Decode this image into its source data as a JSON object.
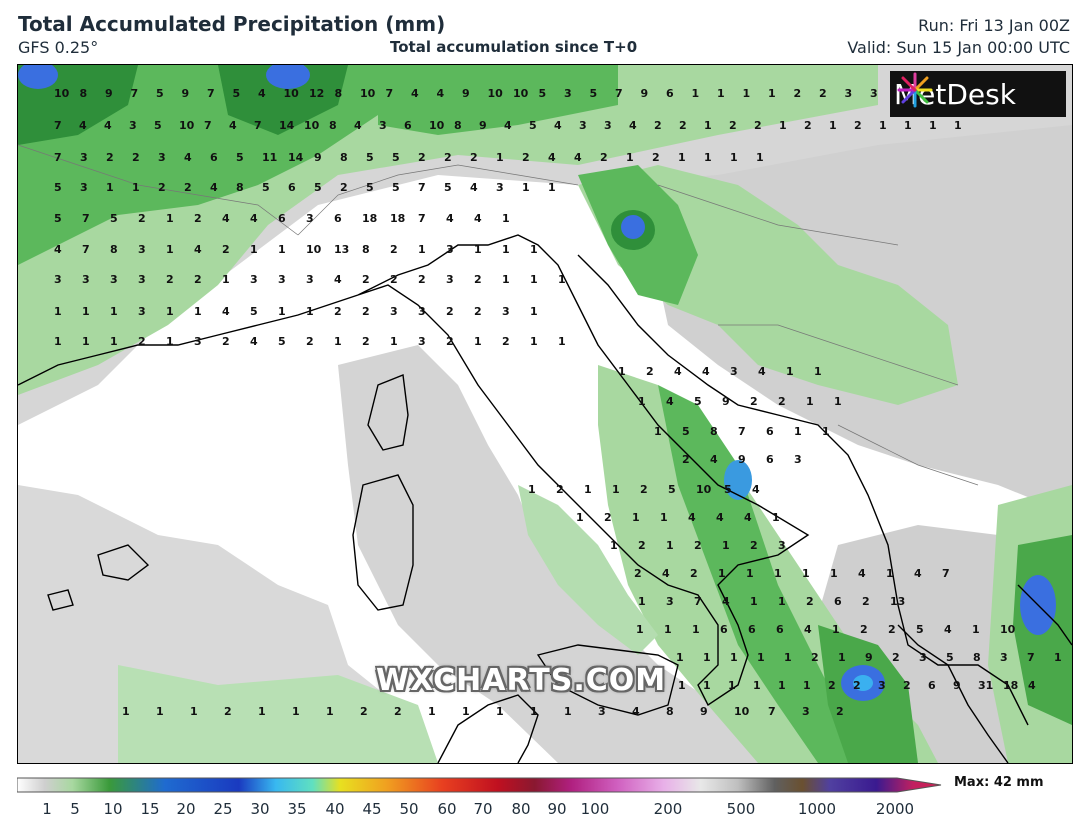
{
  "header": {
    "title": "Total Accumulated Precipitation (mm)",
    "model": "GFS 0.25°",
    "subtitle": "Total accumulation since T+0",
    "run": "Run: Fri 13 Jan 00Z",
    "valid": "Valid: Sun 15 Jan 00:00 UTC"
  },
  "logo": {
    "brand": "MetDesk"
  },
  "watermark": "WXCHARTS.COM",
  "legend": {
    "ticks": [
      "1",
      "5",
      "10",
      "15",
      "20",
      "25",
      "30",
      "35",
      "40",
      "45",
      "50",
      "60",
      "70",
      "80",
      "90",
      "100",
      "200",
      "500",
      "1000",
      "2000"
    ],
    "max_label": "Max: 42 mm"
  },
  "colors": {
    "land": "#ffffff",
    "light_grey": "#dcdcdc",
    "grey": "#c4c4c4",
    "light_green": "#a8d8a0",
    "green": "#5cb85c",
    "dark_green": "#2f8f3a",
    "blue": "#3a6fe0",
    "cyan": "#3ab0f0"
  },
  "map_values": [
    {
      "row": 1,
      "items": [
        "10",
        "8",
        "9",
        "7",
        "5",
        "9",
        "7",
        "5",
        "4",
        "10",
        "12",
        "8",
        "10",
        "7",
        "4",
        "4",
        "9",
        "10",
        "10",
        "5",
        "3",
        "5",
        "7",
        "9",
        "6",
        "1",
        "1",
        "1",
        "1",
        "2",
        "2",
        "3",
        "3",
        "1",
        "1"
      ]
    },
    {
      "row": 2,
      "items": [
        "7",
        "4",
        "4",
        "3",
        "5",
        "10",
        "7",
        "4",
        "7",
        "14",
        "10",
        "8",
        "4",
        "3",
        "6",
        "10",
        "8",
        "9",
        "4",
        "5",
        "4",
        "3",
        "3",
        "4",
        "2",
        "2",
        "1",
        "2",
        "2",
        "1",
        "2",
        "1",
        "2",
        "1",
        "1",
        "1",
        "1"
      ]
    },
    {
      "row": 3,
      "items": [
        "7",
        "3",
        "2",
        "2",
        "3",
        "4",
        "6",
        "5",
        "11",
        "14",
        "9",
        "8",
        "5",
        "5",
        "2",
        "2",
        "2",
        "1",
        "2",
        "4",
        "4",
        "2",
        "1",
        "2",
        "1",
        "1",
        "1",
        "1"
      ]
    },
    {
      "row": 4,
      "items": [
        "5",
        "3",
        "1",
        "1",
        "2",
        "2",
        "4",
        "8",
        "5",
        "6",
        "5",
        "2",
        "5",
        "5",
        "7",
        "5",
        "4",
        "3",
        "1",
        "1"
      ]
    },
    {
      "row": 5,
      "items": [
        "5",
        "7",
        "5",
        "2",
        "1",
        "2",
        "4",
        "4",
        "6",
        "3",
        "6",
        "18",
        "18",
        "7",
        "4",
        "4",
        "1"
      ]
    },
    {
      "row": 6,
      "items": [
        "4",
        "7",
        "8",
        "3",
        "1",
        "4",
        "2",
        "1",
        "1",
        "10",
        "13",
        "8",
        "2",
        "1",
        "3",
        "1",
        "1",
        "1"
      ]
    },
    {
      "row": 7,
      "items": [
        "3",
        "3",
        "3",
        "3",
        "2",
        "2",
        "1",
        "3",
        "3",
        "3",
        "4",
        "2",
        "2",
        "2",
        "3",
        "2",
        "1",
        "1",
        "1"
      ]
    },
    {
      "row": 8,
      "items": [
        "1",
        "1",
        "1",
        "3",
        "1",
        "1",
        "4",
        "5",
        "1",
        "1",
        "2",
        "2",
        "3",
        "3",
        "2",
        "2",
        "3",
        "1"
      ]
    },
    {
      "row": 9,
      "items": [
        "1",
        "1",
        "1",
        "2",
        "1",
        "3",
        "2",
        "4",
        "5",
        "2",
        "1",
        "2",
        "1",
        "3",
        "2",
        "1",
        "2",
        "1",
        "1"
      ]
    },
    {
      "row": 10,
      "items": [
        "1",
        "2",
        "4",
        "4",
        "3",
        "4",
        "1",
        "1"
      ]
    },
    {
      "row": 11,
      "items": [
        "1",
        "4",
        "5",
        "9",
        "2",
        "2",
        "1",
        "1"
      ]
    },
    {
      "row": 12,
      "items": [
        "1",
        "5",
        "8",
        "7",
        "6",
        "1",
        "1"
      ]
    },
    {
      "row": 13,
      "items": [
        "2",
        "4",
        "9",
        "6",
        "3"
      ]
    },
    {
      "row": 14,
      "items": [
        "1",
        "2",
        "1",
        "1",
        "2",
        "5",
        "10",
        "5",
        "4"
      ]
    },
    {
      "row": 15,
      "items": [
        "1",
        "2",
        "1",
        "1",
        "4",
        "4",
        "4",
        "1"
      ]
    },
    {
      "row": 16,
      "items": [
        "1",
        "2",
        "1",
        "2",
        "1",
        "2",
        "3"
      ]
    },
    {
      "row": 17,
      "items": [
        "2",
        "4",
        "2",
        "1",
        "1",
        "1",
        "1",
        "1",
        "4",
        "1",
        "4",
        "7"
      ]
    },
    {
      "row": 18,
      "items": [
        "1",
        "3",
        "7",
        "4",
        "1",
        "1",
        "2",
        "6",
        "2",
        "13"
      ]
    },
    {
      "row": 19,
      "items": [
        "1",
        "1",
        "1",
        "6",
        "6",
        "6",
        "4",
        "1",
        "2",
        "2",
        "5",
        "4",
        "1",
        "10"
      ]
    },
    {
      "row": 20,
      "items": [
        "1",
        "1",
        "1",
        "1",
        "1",
        "2",
        "1",
        "9",
        "2",
        "3",
        "5",
        "8",
        "3",
        "7",
        "1"
      ]
    },
    {
      "row": 21,
      "items": [
        "1",
        "1",
        "1",
        "1",
        "1",
        "1",
        "2",
        "2",
        "3",
        "2",
        "6",
        "9",
        "31",
        "18",
        "4"
      ]
    },
    {
      "row": 22,
      "items": [
        "1",
        "1",
        "1",
        "2",
        "1",
        "1",
        "1",
        "2",
        "2",
        "1",
        "1",
        "1",
        "1",
        "1",
        "3",
        "4",
        "8",
        "9",
        "10",
        "7",
        "3",
        "2"
      ]
    }
  ]
}
